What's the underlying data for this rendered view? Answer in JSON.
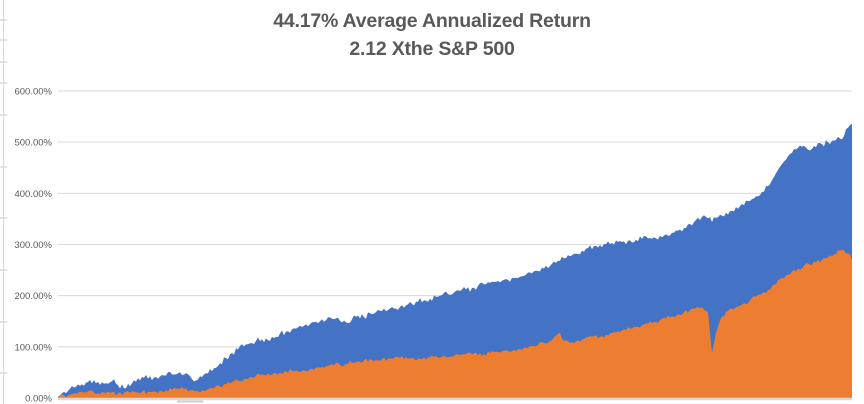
{
  "chart_data": {
    "type": "area",
    "title": "44.17% Average Annualized Return",
    "subtitle": "2.12 Xthe S&P 500",
    "xlabel": "",
    "ylabel": "",
    "units": "percent cumulative return",
    "ylim": [
      0,
      600
    ],
    "y_tick_labels": [
      "600.00%",
      "500.00%",
      "400.00%",
      "300.00%",
      "200.00%",
      "100.00%",
      "0.00%"
    ],
    "y_tick_values": [
      600,
      500,
      400,
      300,
      200,
      100,
      0
    ],
    "x_tick_labels": [],
    "grid": true,
    "legend": "none",
    "axis_text_color": "#595959",
    "x": [
      0,
      0.0076,
      0.0151,
      0.0227,
      0.0302,
      0.0378,
      0.0453,
      0.0529,
      0.0605,
      0.068,
      0.0756,
      0.0831,
      0.0907,
      0.0982,
      0.1058,
      0.1134,
      0.1209,
      0.1285,
      0.136,
      0.1436,
      0.1511,
      0.1587,
      0.1662,
      0.1738,
      0.1814,
      0.1889,
      0.1965,
      0.204,
      0.2116,
      0.2191,
      0.2267,
      0.2343,
      0.2418,
      0.2494,
      0.2569,
      0.2645,
      0.272,
      0.2796,
      0.2872,
      0.2947,
      0.3023,
      0.3098,
      0.3174,
      0.3249,
      0.3325,
      0.3401,
      0.3476,
      0.3552,
      0.3627,
      0.3703,
      0.3778,
      0.3854,
      0.3929,
      0.4005,
      0.4081,
      0.4156,
      0.4232,
      0.4307,
      0.4383,
      0.4458,
      0.4534,
      0.461,
      0.4685,
      0.4761,
      0.4836,
      0.4912,
      0.4987,
      0.5063,
      0.5139,
      0.5214,
      0.529,
      0.5365,
      0.5441,
      0.5516,
      0.5592,
      0.5668,
      0.5743,
      0.5819,
      0.5894,
      0.597,
      0.6045,
      0.6121,
      0.6197,
      0.6272,
      0.6322,
      0.6373,
      0.6448,
      0.6524,
      0.6599,
      0.6675,
      0.675,
      0.6826,
      0.6902,
      0.6977,
      0.7053,
      0.7128,
      0.7204,
      0.7279,
      0.7355,
      0.7431,
      0.7506,
      0.7582,
      0.7657,
      0.7733,
      0.7808,
      0.7884,
      0.796,
      0.8035,
      0.8111,
      0.8186,
      0.8237,
      0.8287,
      0.8338,
      0.8413,
      0.8489,
      0.8564,
      0.864,
      0.8715,
      0.8791,
      0.8866,
      0.8942,
      0.9018,
      0.9093,
      0.9169,
      0.9244,
      0.932,
      0.9395,
      0.9471,
      0.9547,
      0.9622,
      0.9698,
      0.9773,
      0.9849,
      0.9899,
      0.995,
      1
    ],
    "series": [
      {
        "name": "blue-series",
        "color": "#4472C4",
        "values": [
          3,
          12,
          18,
          22,
          27,
          31,
          35,
          26,
          29,
          33,
          25,
          19,
          23,
          32,
          41,
          38,
          40,
          42,
          44,
          46,
          48,
          46,
          43,
          34,
          41,
          48,
          58,
          68,
          78,
          88,
          95,
          101,
          107,
          112,
          115,
          113,
          117,
          126,
          130,
          134,
          138,
          141,
          144,
          149,
          154,
          158,
          154,
          151,
          148,
          154,
          161,
          158,
          166,
          168,
          170,
          172,
          175,
          178,
          181,
          184,
          188,
          191,
          194,
          198,
          201,
          203,
          206,
          209,
          212,
          215,
          219,
          222,
          225,
          227,
          229,
          231,
          234,
          237,
          241,
          244,
          248,
          253,
          258,
          264,
          268,
          273,
          277,
          282,
          288,
          293,
          297,
          299,
          301,
          303,
          305,
          306,
          308,
          309,
          311,
          312,
          314,
          317,
          320,
          323,
          327,
          332,
          340,
          348,
          354,
          351,
          344,
          352,
          358,
          362,
          366,
          370,
          377,
          385,
          394,
          403,
          414,
          432,
          452,
          466,
          479,
          489,
          493,
          484,
          490,
          496,
          500,
          503,
          507,
          512,
          528,
          536
        ]
      },
      {
        "name": "orange-series",
        "color": "#ED7D31",
        "values": [
          1,
          5,
          7,
          9,
          11,
          13,
          11,
          8,
          10,
          11,
          9,
          10,
          10,
          11,
          12,
          12,
          13,
          14,
          15,
          16,
          18,
          17,
          15,
          13,
          15,
          17,
          19,
          23,
          27,
          31,
          34,
          37,
          41,
          44,
          46,
          48,
          49,
          50,
          52,
          53,
          52,
          54,
          57,
          59,
          61,
          63,
          64,
          65,
          67,
          69,
          72,
          74,
          76,
          74,
          76,
          77,
          78,
          79,
          80,
          79,
          77,
          79,
          80,
          82,
          81,
          80,
          82,
          84,
          86,
          85,
          84,
          86,
          88,
          90,
          91,
          92,
          94,
          96,
          98,
          101,
          104,
          108,
          112,
          122,
          127,
          112,
          108,
          111,
          115,
          119,
          121,
          120,
          124,
          127,
          131,
          134,
          136,
          139,
          142,
          145,
          149,
          152,
          156,
          160,
          164,
          168,
          172,
          176,
          178,
          168,
          88,
          128,
          152,
          168,
          174,
          179,
          185,
          191,
          198,
          204,
          211,
          222,
          232,
          240,
          247,
          253,
          258,
          261,
          265,
          270,
          275,
          281,
          288,
          289,
          283,
          271
        ]
      }
    ]
  }
}
